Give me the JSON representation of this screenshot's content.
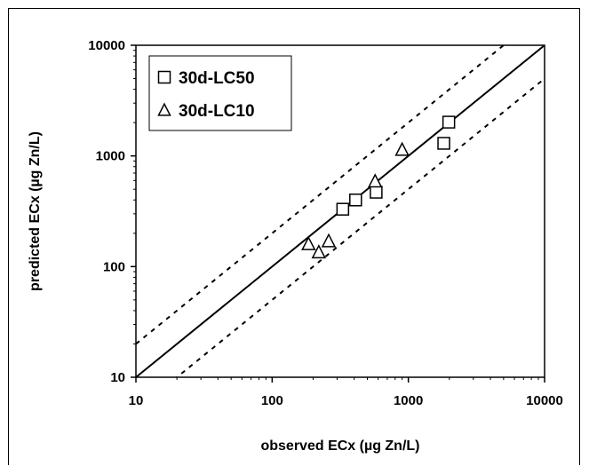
{
  "chart_data": {
    "type": "scatter",
    "xlabel": "observed ECx (µg Zn/L)",
    "ylabel": "predicted ECx (µg Zn/L)",
    "xscale": "log",
    "yscale": "log",
    "xlim": [
      10,
      10000
    ],
    "ylim": [
      10,
      10000
    ],
    "x_ticks": [
      "10",
      "100",
      "1000",
      "10000"
    ],
    "y_ticks": [
      "10",
      "100",
      "1000",
      "10000"
    ],
    "grid": false,
    "legend_position": "top-left",
    "series": [
      {
        "name": "30d-LC50",
        "marker": "square",
        "points": [
          [
            330,
            330
          ],
          [
            410,
            400
          ],
          [
            580,
            470
          ],
          [
            1820,
            1300
          ],
          [
            1980,
            2020
          ]
        ]
      },
      {
        "name": "30d-LC10",
        "marker": "triangle",
        "points": [
          [
            185,
            160
          ],
          [
            220,
            135
          ],
          [
            260,
            170
          ],
          [
            570,
            590
          ],
          [
            900,
            1140
          ]
        ]
      }
    ],
    "reference_lines": [
      {
        "label": "1:1",
        "style": "solid",
        "factor": 1
      },
      {
        "label": "x2",
        "style": "dashed",
        "factor": 2
      },
      {
        "label": "x0.5",
        "style": "dashed",
        "factor": 0.5
      }
    ]
  }
}
